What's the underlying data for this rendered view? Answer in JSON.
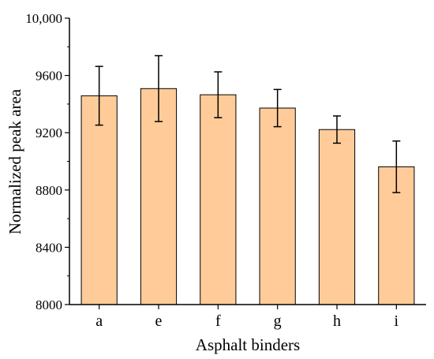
{
  "chart_data": {
    "type": "bar",
    "title": "",
    "xlabel": "Asphalt binders",
    "ylabel": "Normalized peak area",
    "categories": [
      "a",
      "e",
      "f",
      "g",
      "h",
      "i"
    ],
    "values": [
      9458,
      9508,
      9465,
      9372,
      9222,
      8962
    ],
    "error": [
      205,
      230,
      160,
      130,
      95,
      180
    ],
    "ylim": [
      8000,
      10000
    ],
    "yticks": [
      8000,
      8400,
      8800,
      9200,
      9600,
      10000
    ],
    "ytick_labels": [
      "8000",
      "8400",
      "8800",
      "9200",
      "9600",
      "10,000"
    ],
    "grid": false,
    "legend": "none",
    "bar_color": "#FFCC99",
    "edge_color": "#000000"
  }
}
